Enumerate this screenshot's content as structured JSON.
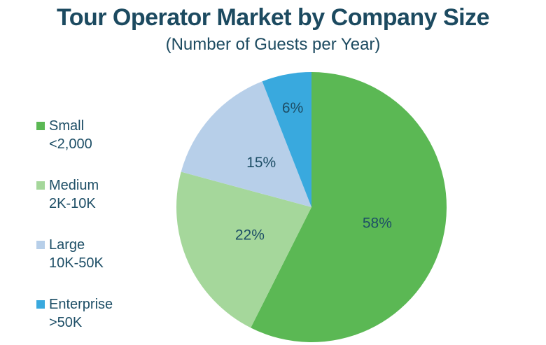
{
  "title": "Tour Operator Market by Company Size",
  "subtitle": "(Number of Guests per Year)",
  "colors": {
    "title_text": "#1c4a60",
    "label_text": "#1d4e66",
    "background": "#ffffff"
  },
  "chart_data": {
    "type": "pie",
    "title": "Tour Operator Market by Company Size",
    "subtitle": "(Number of Guests per Year)",
    "unit": "percent of market",
    "start_angle_deg": 0,
    "direction": "clockwise",
    "legend_position": "left",
    "slices": [
      {
        "label": "Small",
        "sublabel": "<2,000",
        "value": 58,
        "display": "58%",
        "color": "#5bb854"
      },
      {
        "label": "Medium",
        "sublabel": "2K-10K",
        "value": 22,
        "display": "22%",
        "color": "#a5d79b"
      },
      {
        "label": "Large",
        "sublabel": "10K-50K",
        "value": 15,
        "display": "15%",
        "color": "#b7cfe9"
      },
      {
        "label": "Enterprise",
        "sublabel": ">50K",
        "value": 6,
        "display": "6%",
        "color": "#39a9de"
      }
    ]
  }
}
